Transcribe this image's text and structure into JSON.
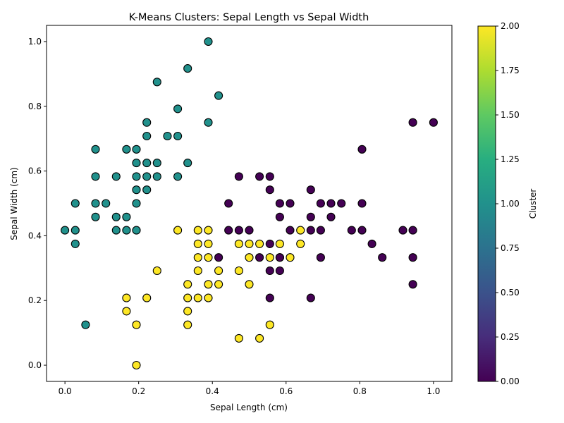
{
  "chart_data": {
    "type": "scatter",
    "title": "K-Means Clusters: Sepal Length vs Sepal Width",
    "xlabel": "Sepal Length (cm)",
    "ylabel": "Sepal Width (cm)",
    "xlim": [
      -0.05,
      1.05
    ],
    "ylim": [
      -0.05,
      1.05
    ],
    "xticks": [
      "0.0",
      "0.2",
      "0.4",
      "0.6",
      "0.8",
      "1.0"
    ],
    "yticks": [
      "0.0",
      "0.2",
      "0.4",
      "0.6",
      "0.8",
      "1.0"
    ],
    "grid": false,
    "colormap": "viridis",
    "cluster_colors": {
      "0": "#440154",
      "1": "#21918c",
      "2": "#fde725"
    },
    "colorbar": {
      "label": "Cluster",
      "range": [
        0,
        2
      ],
      "ticks": [
        "0.00",
        "0.25",
        "0.50",
        "0.75",
        "1.00",
        "1.25",
        "1.50",
        "1.75",
        "2.00"
      ]
    },
    "points": [
      [
        0.0,
        0.417,
        1
      ],
      [
        0.028,
        0.5,
        1
      ],
      [
        0.028,
        0.417,
        1
      ],
      [
        0.028,
        0.375,
        1
      ],
      [
        0.056,
        0.125,
        1
      ],
      [
        0.083,
        0.667,
        1
      ],
      [
        0.083,
        0.583,
        1
      ],
      [
        0.083,
        0.5,
        1
      ],
      [
        0.083,
        0.458,
        1
      ],
      [
        0.111,
        0.5,
        1
      ],
      [
        0.139,
        0.583,
        1
      ],
      [
        0.139,
        0.458,
        1
      ],
      [
        0.139,
        0.417,
        1
      ],
      [
        0.167,
        0.667,
        1
      ],
      [
        0.167,
        0.458,
        1
      ],
      [
        0.167,
        0.417,
        1
      ],
      [
        0.194,
        0.667,
        1
      ],
      [
        0.194,
        0.625,
        1
      ],
      [
        0.194,
        0.583,
        1
      ],
      [
        0.194,
        0.542,
        1
      ],
      [
        0.194,
        0.5,
        1
      ],
      [
        0.194,
        0.417,
        1
      ],
      [
        0.222,
        0.75,
        1
      ],
      [
        0.222,
        0.708,
        1
      ],
      [
        0.222,
        0.625,
        1
      ],
      [
        0.222,
        0.583,
        1
      ],
      [
        0.222,
        0.542,
        1
      ],
      [
        0.25,
        0.875,
        1
      ],
      [
        0.25,
        0.625,
        1
      ],
      [
        0.25,
        0.583,
        1
      ],
      [
        0.278,
        0.708,
        1
      ],
      [
        0.306,
        0.792,
        1
      ],
      [
        0.306,
        0.708,
        1
      ],
      [
        0.306,
        0.583,
        1
      ],
      [
        0.333,
        0.917,
        1
      ],
      [
        0.333,
        0.625,
        1
      ],
      [
        0.389,
        1.0,
        1
      ],
      [
        0.389,
        0.75,
        1
      ],
      [
        0.417,
        0.833,
        1
      ],
      [
        0.167,
        0.208,
        2
      ],
      [
        0.167,
        0.167,
        2
      ],
      [
        0.194,
        0.125,
        2
      ],
      [
        0.194,
        0.0,
        2
      ],
      [
        0.222,
        0.208,
        2
      ],
      [
        0.25,
        0.292,
        2
      ],
      [
        0.306,
        0.417,
        2
      ],
      [
        0.333,
        0.25,
        2
      ],
      [
        0.333,
        0.208,
        2
      ],
      [
        0.333,
        0.167,
        2
      ],
      [
        0.333,
        0.125,
        2
      ],
      [
        0.361,
        0.417,
        2
      ],
      [
        0.361,
        0.375,
        2
      ],
      [
        0.361,
        0.333,
        2
      ],
      [
        0.361,
        0.292,
        2
      ],
      [
        0.361,
        0.208,
        2
      ],
      [
        0.389,
        0.417,
        2
      ],
      [
        0.389,
        0.375,
        2
      ],
      [
        0.389,
        0.333,
        2
      ],
      [
        0.389,
        0.25,
        2
      ],
      [
        0.389,
        0.208,
        2
      ],
      [
        0.417,
        0.292,
        2
      ],
      [
        0.417,
        0.25,
        2
      ],
      [
        0.472,
        0.375,
        2
      ],
      [
        0.472,
        0.292,
        2
      ],
      [
        0.472,
        0.083,
        2
      ],
      [
        0.5,
        0.375,
        2
      ],
      [
        0.5,
        0.333,
        2
      ],
      [
        0.5,
        0.25,
        2
      ],
      [
        0.528,
        0.375,
        2
      ],
      [
        0.528,
        0.083,
        2
      ],
      [
        0.556,
        0.333,
        2
      ],
      [
        0.556,
        0.125,
        2
      ],
      [
        0.583,
        0.375,
        2
      ],
      [
        0.583,
        0.333,
        2
      ],
      [
        0.611,
        0.333,
        2
      ],
      [
        0.639,
        0.417,
        2
      ],
      [
        0.639,
        0.375,
        2
      ],
      [
        0.417,
        0.333,
        0
      ],
      [
        0.444,
        0.5,
        0
      ],
      [
        0.444,
        0.417,
        0
      ],
      [
        0.472,
        0.583,
        0
      ],
      [
        0.472,
        0.417,
        0
      ],
      [
        0.5,
        0.417,
        0
      ],
      [
        0.528,
        0.583,
        0
      ],
      [
        0.528,
        0.333,
        0
      ],
      [
        0.556,
        0.583,
        0
      ],
      [
        0.556,
        0.542,
        0
      ],
      [
        0.556,
        0.375,
        0
      ],
      [
        0.556,
        0.292,
        0
      ],
      [
        0.556,
        0.208,
        0
      ],
      [
        0.583,
        0.5,
        0
      ],
      [
        0.583,
        0.458,
        0
      ],
      [
        0.583,
        0.333,
        0
      ],
      [
        0.583,
        0.292,
        0
      ],
      [
        0.611,
        0.5,
        0
      ],
      [
        0.611,
        0.417,
        0
      ],
      [
        0.667,
        0.542,
        0
      ],
      [
        0.667,
        0.458,
        0
      ],
      [
        0.667,
        0.417,
        0
      ],
      [
        0.667,
        0.208,
        0
      ],
      [
        0.694,
        0.5,
        0
      ],
      [
        0.694,
        0.417,
        0
      ],
      [
        0.694,
        0.333,
        0
      ],
      [
        0.722,
        0.5,
        0
      ],
      [
        0.722,
        0.458,
        0
      ],
      [
        0.75,
        0.5,
        0
      ],
      [
        0.778,
        0.417,
        0
      ],
      [
        0.806,
        0.667,
        0
      ],
      [
        0.806,
        0.5,
        0
      ],
      [
        0.806,
        0.417,
        0
      ],
      [
        0.833,
        0.375,
        0
      ],
      [
        0.861,
        0.333,
        0
      ],
      [
        0.917,
        0.417,
        0
      ],
      [
        0.944,
        0.75,
        0
      ],
      [
        0.944,
        0.417,
        0
      ],
      [
        0.944,
        0.333,
        0
      ],
      [
        0.944,
        0.25,
        0
      ],
      [
        1.0,
        0.75,
        0
      ]
    ]
  }
}
